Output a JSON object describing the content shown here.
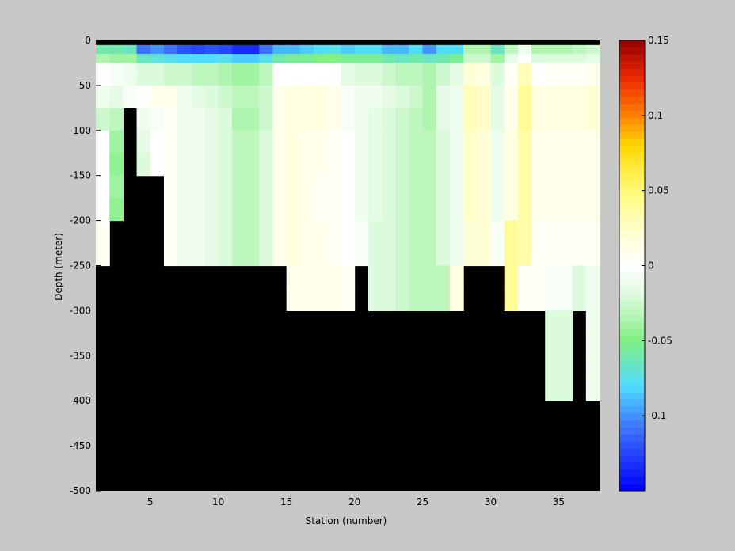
{
  "chart_data": {
    "type": "heatmap",
    "title": "",
    "xlabel": "Station (number)",
    "ylabel": "Depth (meter)",
    "xlim": [
      1,
      38
    ],
    "ylim": [
      -500,
      0
    ],
    "x_ticks": [
      5,
      10,
      15,
      20,
      25,
      30,
      35
    ],
    "y_ticks": [
      0,
      -50,
      -100,
      -150,
      -200,
      -250,
      -300,
      -350,
      -400,
      -450,
      -500
    ],
    "colorbar": {
      "limits": [
        -0.15,
        0.15
      ],
      "ticks": [
        0.15,
        0.1,
        0.05,
        0,
        -0.05,
        -0.1
      ],
      "tick_labels": [
        "0.15",
        "0.1",
        "0.05",
        "0",
        "-0.05",
        "-0.1"
      ],
      "colormap": "jet-white-centered"
    },
    "no_data_color": "#000000",
    "stations": [
      1,
      2,
      3,
      4,
      5,
      6,
      7,
      8,
      9,
      10,
      11,
      12,
      13,
      14,
      15,
      16,
      17,
      18,
      19,
      20,
      21,
      22,
      23,
      24,
      25,
      26,
      27,
      28,
      29,
      30,
      31,
      32,
      33,
      34,
      35,
      36,
      37
    ],
    "depth_bins": [
      [
        -5,
        -15
      ],
      [
        -15,
        -25
      ],
      [
        -25,
        -50
      ],
      [
        -50,
        -75
      ],
      [
        -75,
        -100
      ],
      [
        -100,
        -125
      ],
      [
        -125,
        -150
      ],
      [
        -150,
        -175
      ],
      [
        -175,
        -200
      ],
      [
        -200,
        -225
      ],
      [
        -225,
        -250
      ],
      [
        -250,
        -275
      ],
      [
        -275,
        -300
      ],
      [
        -300,
        -325
      ],
      [
        -325,
        -350
      ],
      [
        -350,
        -375
      ],
      [
        -375,
        -400
      ]
    ],
    "bottom_depth": [
      -250,
      -200,
      -75,
      -150,
      -150,
      -250,
      -250,
      -250,
      -250,
      -250,
      -250,
      -250,
      -250,
      -250,
      -300,
      -300,
      -300,
      -300,
      -300,
      -250,
      -300,
      -300,
      -300,
      -300,
      -300,
      -300,
      -300,
      -250,
      -250,
      -250,
      -300,
      -300,
      -300,
      -400,
      -400,
      -300,
      -400
    ],
    "values": [
      [
        -0.06,
        -0.06,
        -0.065,
        -0.11,
        -0.1,
        -0.11,
        -0.12,
        -0.125,
        -0.12,
        -0.125,
        -0.135,
        -0.135,
        -0.11,
        -0.09,
        -0.09,
        -0.085,
        -0.08,
        -0.075,
        -0.085,
        -0.08,
        -0.08,
        -0.09,
        -0.09,
        -0.08,
        -0.1,
        -0.08,
        -0.08,
        -0.035,
        -0.035,
        -0.065,
        -0.03,
        -0.01,
        -0.035,
        -0.035,
        -0.035,
        -0.03,
        -0.025
      ],
      [
        -0.035,
        -0.04,
        -0.04,
        -0.065,
        -0.07,
        -0.075,
        -0.08,
        -0.08,
        -0.08,
        -0.075,
        -0.085,
        -0.085,
        -0.075,
        -0.06,
        -0.055,
        -0.055,
        -0.05,
        -0.05,
        -0.055,
        -0.055,
        -0.055,
        -0.06,
        -0.065,
        -0.06,
        -0.065,
        -0.06,
        -0.055,
        -0.025,
        -0.025,
        -0.04,
        -0.015,
        0.0,
        -0.02,
        -0.02,
        -0.02,
        -0.02,
        -0.015
      ],
      [
        0.0,
        -0.005,
        -0.01,
        -0.02,
        -0.02,
        -0.025,
        -0.025,
        -0.03,
        -0.03,
        -0.035,
        -0.04,
        -0.04,
        -0.03,
        0.0,
        0.0,
        0.0,
        0.0,
        0.0,
        -0.015,
        -0.02,
        -0.02,
        -0.025,
        -0.03,
        -0.03,
        -0.035,
        -0.025,
        -0.015,
        0.02,
        0.015,
        -0.02,
        0.005,
        0.03,
        0.0,
        0.005,
        0.005,
        0.005,
        0.01
      ],
      [
        -0.01,
        -0.015,
        -0.005,
        0.0,
        0.01,
        0.01,
        -0.01,
        -0.015,
        -0.02,
        -0.025,
        -0.03,
        -0.03,
        -0.025,
        0.01,
        0.015,
        0.015,
        0.015,
        0.01,
        -0.005,
        -0.01,
        -0.01,
        -0.015,
        -0.02,
        -0.025,
        -0.035,
        -0.015,
        -0.01,
        0.03,
        0.025,
        -0.015,
        0.01,
        0.04,
        0.015,
        0.015,
        0.015,
        0.015,
        0.02
      ],
      [
        -0.025,
        -0.03,
        null,
        -0.01,
        -0.005,
        0.005,
        -0.01,
        -0.01,
        -0.015,
        -0.02,
        -0.035,
        -0.035,
        -0.025,
        0.01,
        0.015,
        0.015,
        0.015,
        0.01,
        -0.005,
        -0.01,
        -0.015,
        -0.02,
        -0.025,
        -0.03,
        -0.035,
        -0.015,
        -0.01,
        0.03,
        0.025,
        -0.015,
        0.01,
        0.04,
        0.015,
        0.015,
        0.015,
        0.015,
        0.02
      ],
      [
        0.0,
        -0.04,
        null,
        -0.015,
        0.0,
        0.005,
        -0.01,
        -0.01,
        -0.015,
        -0.02,
        -0.03,
        -0.03,
        -0.02,
        0.01,
        0.015,
        0.01,
        0.01,
        0.005,
        0.0,
        -0.01,
        -0.015,
        -0.02,
        -0.025,
        -0.03,
        -0.03,
        -0.02,
        -0.01,
        0.025,
        0.02,
        -0.01,
        0.015,
        0.035,
        0.01,
        0.01,
        0.01,
        0.01,
        0.01
      ],
      [
        0.0,
        -0.045,
        null,
        -0.02,
        0.0,
        0.005,
        -0.01,
        -0.01,
        -0.015,
        -0.02,
        -0.03,
        -0.03,
        -0.02,
        0.01,
        0.015,
        0.01,
        0.01,
        0.005,
        0.0,
        -0.01,
        -0.015,
        -0.02,
        -0.025,
        -0.03,
        -0.03,
        -0.02,
        -0.01,
        0.025,
        0.02,
        -0.01,
        0.015,
        0.035,
        0.01,
        0.01,
        0.01,
        0.01,
        0.01
      ],
      [
        0.0,
        -0.04,
        null,
        null,
        null,
        0.005,
        -0.01,
        -0.01,
        -0.015,
        -0.02,
        -0.03,
        -0.03,
        -0.02,
        0.01,
        0.015,
        0.01,
        0.005,
        0.005,
        0.0,
        -0.01,
        -0.015,
        -0.02,
        -0.025,
        -0.03,
        -0.03,
        -0.02,
        -0.01,
        0.025,
        0.02,
        -0.01,
        0.015,
        0.035,
        0.01,
        0.01,
        0.01,
        0.01,
        0.01
      ],
      [
        0.0,
        -0.045,
        null,
        null,
        null,
        0.005,
        -0.01,
        -0.01,
        -0.015,
        -0.02,
        -0.03,
        -0.03,
        -0.02,
        0.01,
        0.015,
        0.01,
        0.005,
        0.005,
        0.0,
        -0.01,
        -0.015,
        -0.02,
        -0.025,
        -0.03,
        -0.03,
        -0.02,
        -0.01,
        0.025,
        0.02,
        -0.01,
        0.015,
        0.035,
        0.01,
        0.01,
        0.01,
        0.01,
        0.01
      ],
      [
        0.005,
        null,
        null,
        null,
        null,
        0.005,
        -0.01,
        -0.01,
        -0.015,
        -0.02,
        -0.03,
        -0.03,
        -0.02,
        0.01,
        0.015,
        0.01,
        0.01,
        0.005,
        0.0,
        -0.005,
        -0.02,
        -0.02,
        -0.025,
        -0.03,
        -0.03,
        -0.02,
        -0.01,
        0.02,
        0.02,
        -0.005,
        0.04,
        0.035,
        0.005,
        0.005,
        0.005,
        0.005,
        0.005
      ],
      [
        0.005,
        null,
        null,
        null,
        null,
        0.005,
        -0.01,
        -0.01,
        -0.015,
        -0.02,
        -0.03,
        -0.03,
        -0.02,
        0.01,
        0.015,
        0.01,
        0.01,
        0.005,
        0.0,
        -0.005,
        -0.02,
        -0.02,
        -0.025,
        -0.03,
        -0.03,
        -0.02,
        -0.01,
        0.02,
        0.02,
        -0.005,
        0.04,
        0.035,
        0.005,
        0.005,
        0.005,
        0.005,
        0.005
      ],
      [
        null,
        null,
        null,
        null,
        null,
        null,
        null,
        null,
        null,
        null,
        null,
        null,
        null,
        null,
        0.01,
        0.01,
        0.01,
        0.01,
        0.005,
        null,
        -0.02,
        -0.02,
        -0.025,
        -0.03,
        -0.03,
        -0.03,
        0.015,
        null,
        null,
        null,
        0.04,
        0.005,
        0.005,
        -0.005,
        -0.005,
        -0.02,
        -0.01
      ],
      [
        null,
        null,
        null,
        null,
        null,
        null,
        null,
        null,
        null,
        null,
        null,
        null,
        null,
        null,
        0.01,
        0.01,
        0.01,
        0.01,
        0.005,
        null,
        -0.02,
        -0.02,
        -0.025,
        -0.03,
        -0.03,
        -0.03,
        0.015,
        null,
        null,
        null,
        0.04,
        0.005,
        0.005,
        -0.005,
        -0.005,
        -0.02,
        -0.01
      ],
      [
        null,
        null,
        null,
        null,
        null,
        null,
        null,
        null,
        null,
        null,
        null,
        null,
        null,
        null,
        null,
        null,
        null,
        null,
        null,
        null,
        null,
        null,
        null,
        null,
        null,
        null,
        null,
        null,
        null,
        null,
        null,
        null,
        null,
        -0.02,
        -0.02,
        null,
        -0.01
      ],
      [
        null,
        null,
        null,
        null,
        null,
        null,
        null,
        null,
        null,
        null,
        null,
        null,
        null,
        null,
        null,
        null,
        null,
        null,
        null,
        null,
        null,
        null,
        null,
        null,
        null,
        null,
        null,
        null,
        null,
        null,
        null,
        null,
        null,
        -0.02,
        -0.02,
        null,
        -0.01
      ],
      [
        null,
        null,
        null,
        null,
        null,
        null,
        null,
        null,
        null,
        null,
        null,
        null,
        null,
        null,
        null,
        null,
        null,
        null,
        null,
        null,
        null,
        null,
        null,
        null,
        null,
        null,
        null,
        null,
        null,
        null,
        null,
        null,
        null,
        -0.02,
        -0.02,
        null,
        -0.01
      ],
      [
        null,
        null,
        null,
        null,
        null,
        null,
        null,
        null,
        null,
        null,
        null,
        null,
        null,
        null,
        null,
        null,
        null,
        null,
        null,
        null,
        null,
        null,
        null,
        null,
        null,
        null,
        null,
        null,
        null,
        null,
        null,
        null,
        null,
        -0.02,
        -0.02,
        null,
        -0.01
      ]
    ]
  }
}
